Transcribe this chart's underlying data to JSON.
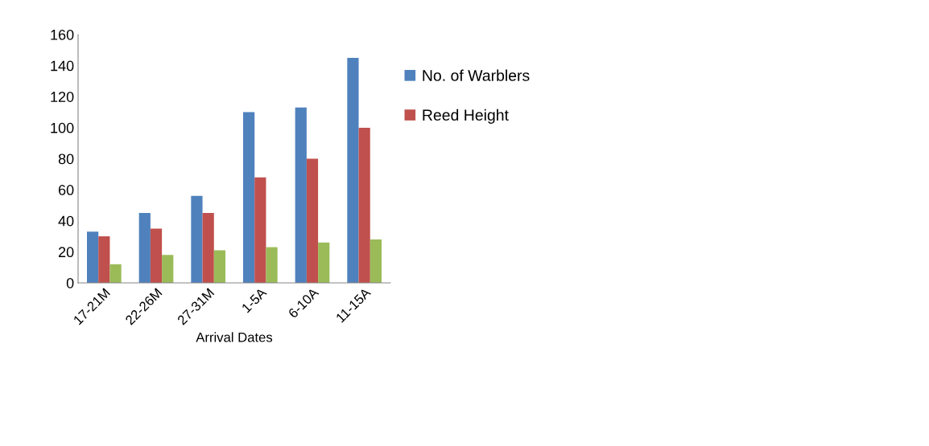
{
  "chart_data": {
    "type": "bar",
    "xlabel": "Arrival Dates",
    "categories": [
      "17-21M",
      "22-26M",
      "27-31M",
      "1-5A",
      "6-10A",
      "11-15A"
    ],
    "series": [
      {
        "name": "No. of Warblers",
        "color": "#4f81bd",
        "values": [
          33,
          45,
          56,
          110,
          113,
          145
        ]
      },
      {
        "name": "Reed Height",
        "color": "#c0504d",
        "values": [
          30,
          35,
          45,
          68,
          80,
          100
        ]
      },
      {
        "color": "#9bbb59",
        "values": [
          12,
          18,
          21,
          23,
          26,
          28
        ]
      }
    ],
    "ylim": [
      0,
      160
    ],
    "yticks": [
      0,
      20,
      40,
      60,
      80,
      100,
      120,
      140,
      160
    ],
    "grid": false,
    "legend": "right"
  }
}
